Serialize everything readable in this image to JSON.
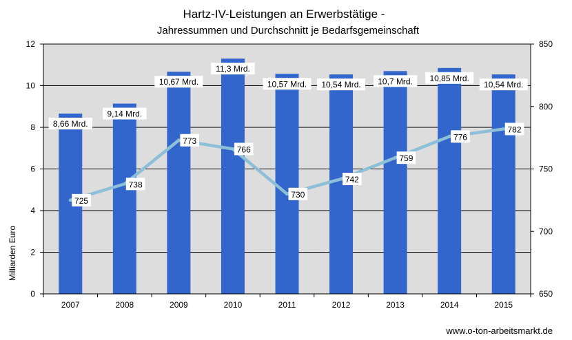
{
  "chart_data": {
    "type": "bar",
    "title": "Hartz-IV-Leistungen an Erwerbstätige -",
    "subtitle": "Jahressummen und Durchschnitt je Bedarfsgemeinschaft",
    "ylabel": "Milliarden Euro",
    "y2label": "",
    "categories": [
      "2007",
      "2008",
      "2009",
      "2010",
      "2011",
      "2012",
      "2013",
      "2014",
      "2015"
    ],
    "ylim": [
      0,
      12
    ],
    "y_ticks": [
      "0",
      "2",
      "4",
      "6",
      "8",
      "10",
      "12"
    ],
    "y2lim": [
      650,
      850
    ],
    "y2_ticks": [
      "650",
      "700",
      "750",
      "800",
      "850"
    ],
    "grid": true,
    "legend": "none",
    "series": [
      {
        "kind": "bar",
        "axis": "left",
        "color": "#3366CC",
        "values": [
          8.66,
          9.14,
          10.67,
          11.3,
          10.57,
          10.54,
          10.7,
          10.85,
          10.54
        ],
        "labels": [
          "8,66 Mrd.",
          "9,14 Mrd.",
          "10,67 Mrd.",
          "11,3 Mrd.",
          "10,57 Mrd.",
          "10,54 Mrd.",
          "10,7 Mrd.",
          "10,85 Mrd.",
          "10,54 Mrd."
        ]
      },
      {
        "kind": "line",
        "axis": "right",
        "color": "#8DBFD9",
        "values": [
          725,
          738,
          773,
          766,
          730,
          742,
          759,
          776,
          782
        ],
        "labels": [
          "725",
          "738",
          "773",
          "766",
          "730",
          "742",
          "759",
          "776",
          "782"
        ]
      }
    ],
    "plot_background": "#DDDDDD",
    "gridline_color": "#000000"
  },
  "source_text": "www.o-ton-arbeitsmarkt.de"
}
